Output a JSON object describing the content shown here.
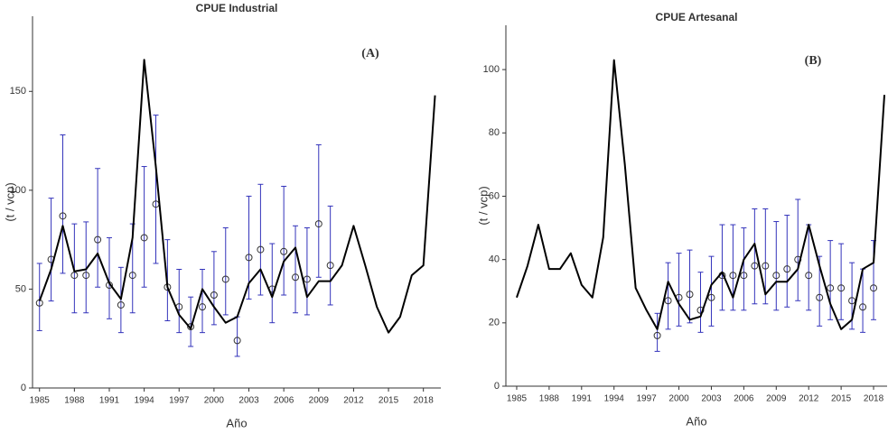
{
  "chart_data": [
    {
      "type": "line",
      "title": "CPUE Industrial",
      "annotation": "(A)",
      "x_label": "Año",
      "y_label": "(t / vcp)",
      "x": [
        1985,
        1986,
        1987,
        1988,
        1989,
        1990,
        1991,
        1992,
        1993,
        1994,
        1995,
        1996,
        1997,
        1998,
        1999,
        2000,
        2001,
        2002,
        2003,
        2004,
        2005,
        2006,
        2007,
        2008,
        2009,
        2010,
        2011,
        2012,
        2013,
        2014,
        2015,
        2016,
        2017,
        2018,
        2019
      ],
      "series": [
        {
          "color": "#000000",
          "values": [
            44,
            60,
            82,
            59,
            60,
            68,
            53,
            45,
            76,
            166,
            112,
            51,
            37,
            30,
            50,
            41,
            33,
            36,
            53,
            60,
            46,
            64,
            71,
            46,
            54,
            54,
            62,
            82,
            62,
            41,
            28,
            36,
            57,
            62,
            148
          ]
        }
      ],
      "estimates": {
        "color": "#3333bb",
        "x": [
          1985,
          1986,
          1987,
          1988,
          1989,
          1990,
          1991,
          1992,
          1993,
          1994,
          1995,
          1996,
          1997,
          1998,
          1999,
          2000,
          2001,
          2002,
          2003,
          2004,
          2005,
          2006,
          2007,
          2008,
          2009,
          2010
        ],
        "values": [
          43,
          65,
          87,
          57,
          57,
          75,
          52,
          42,
          57,
          76,
          93,
          51,
          41,
          31,
          41,
          47,
          55,
          24,
          66,
          70,
          50,
          69,
          56,
          55,
          83,
          62
        ],
        "lower": [
          29,
          44,
          58,
          38,
          38,
          51,
          35,
          28,
          38,
          51,
          63,
          34,
          28,
          21,
          28,
          32,
          37,
          16,
          45,
          47,
          33,
          47,
          38,
          37,
          56,
          42
        ],
        "upper": [
          63,
          96,
          128,
          83,
          84,
          111,
          76,
          61,
          83,
          112,
          138,
          75,
          60,
          46,
          60,
          69,
          81,
          36,
          97,
          103,
          73,
          102,
          82,
          81,
          123,
          92
        ]
      },
      "xlim": [
        1984.4,
        2019.5
      ],
      "ylim": [
        0,
        188
      ],
      "xticks": [
        1985,
        1988,
        1991,
        1994,
        1997,
        2000,
        2003,
        2006,
        2009,
        2012,
        2015,
        2018
      ],
      "yticks": [
        0,
        50,
        100,
        150
      ]
    },
    {
      "type": "line",
      "title": "CPUE Artesanal",
      "annotation": "(B)",
      "x_label": "Año",
      "y_label": "(t / vcp)",
      "x": [
        1985,
        1986,
        1987,
        1988,
        1989,
        1990,
        1991,
        1992,
        1993,
        1994,
        1995,
        1996,
        1997,
        1998,
        1999,
        2000,
        2001,
        2002,
        2003,
        2004,
        2005,
        2006,
        2007,
        2008,
        2009,
        2010,
        2011,
        2012,
        2013,
        2014,
        2015,
        2016,
        2017,
        2018,
        2019
      ],
      "series": [
        {
          "color": "#000000",
          "values": [
            28,
            38,
            51,
            37,
            37,
            42,
            32,
            28,
            47,
            103,
            70,
            31,
            24,
            18,
            33,
            26,
            21,
            22,
            32,
            36,
            28,
            40,
            45,
            29,
            33,
            33,
            37,
            51,
            38,
            26,
            18,
            21,
            37,
            39,
            92
          ]
        }
      ],
      "estimates": {
        "color": "#3333bb",
        "x": [
          1998,
          1999,
          2000,
          2001,
          2002,
          2003,
          2004,
          2005,
          2006,
          2007,
          2008,
          2009,
          2010,
          2011,
          2012,
          2013,
          2014,
          2015,
          2016,
          2017,
          2018
        ],
        "values": [
          16,
          27,
          28,
          29,
          24,
          28,
          35,
          35,
          35,
          38,
          38,
          35,
          37,
          40,
          35,
          28,
          31,
          31,
          27,
          25,
          31
        ],
        "lower": [
          11,
          18,
          19,
          20,
          17,
          19,
          24,
          24,
          24,
          26,
          26,
          24,
          25,
          27,
          24,
          19,
          21,
          21,
          18,
          17,
          21
        ],
        "upper": [
          23,
          39,
          42,
          43,
          36,
          41,
          51,
          51,
          50,
          56,
          56,
          52,
          54,
          59,
          51,
          41,
          46,
          45,
          39,
          37,
          46
        ]
      },
      "xlim": [
        1984,
        2019.25
      ],
      "ylim": [
        0,
        114
      ],
      "xticks": [
        1985,
        1988,
        1991,
        1994,
        1997,
        2000,
        2003,
        2006,
        2009,
        2012,
        2015,
        2018
      ],
      "yticks": [
        0,
        20,
        40,
        60,
        80,
        100
      ]
    }
  ]
}
